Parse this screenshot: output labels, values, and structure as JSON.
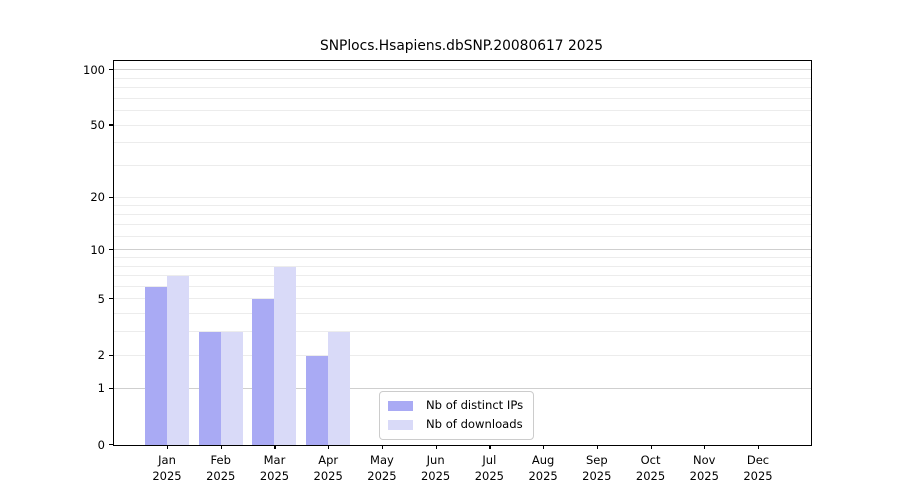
{
  "chart_data": {
    "type": "bar",
    "title": "SNPlocs.Hsapiens.dbSNP.20080617 2025",
    "categories": [
      "Jan",
      "Feb",
      "Mar",
      "Apr",
      "May",
      "Jun",
      "Jul",
      "Aug",
      "Sep",
      "Oct",
      "Nov",
      "Dec"
    ],
    "year_label": "2025",
    "series": [
      {
        "name": "Nb of distinct IPs",
        "color": "#a9aaf4",
        "values": [
          6,
          3,
          5,
          2,
          0,
          0,
          0,
          0,
          0,
          0,
          0,
          0
        ]
      },
      {
        "name": "Nb of downloads",
        "color": "#d9daf8",
        "values": [
          7,
          3,
          8,
          3,
          0,
          0,
          0,
          0,
          0,
          0,
          0,
          0
        ]
      }
    ],
    "xlabel": "",
    "ylabel": "",
    "y_scale": "log10(1+v)",
    "ylim": [
      0,
      112
    ],
    "y_ticks": [
      0,
      1,
      2,
      5,
      10,
      20,
      50,
      100
    ],
    "grid": "on",
    "grid_major_values": [
      1,
      10,
      100
    ],
    "grid_minor_values": [
      2,
      3,
      4,
      5,
      6,
      7,
      8,
      9,
      12,
      14,
      16,
      18,
      20,
      30,
      40,
      50,
      60,
      70,
      80,
      90
    ],
    "legend_position": "inside-bottom-center",
    "legend_border_color": "#cccccc",
    "background_color": "#ffffff"
  }
}
